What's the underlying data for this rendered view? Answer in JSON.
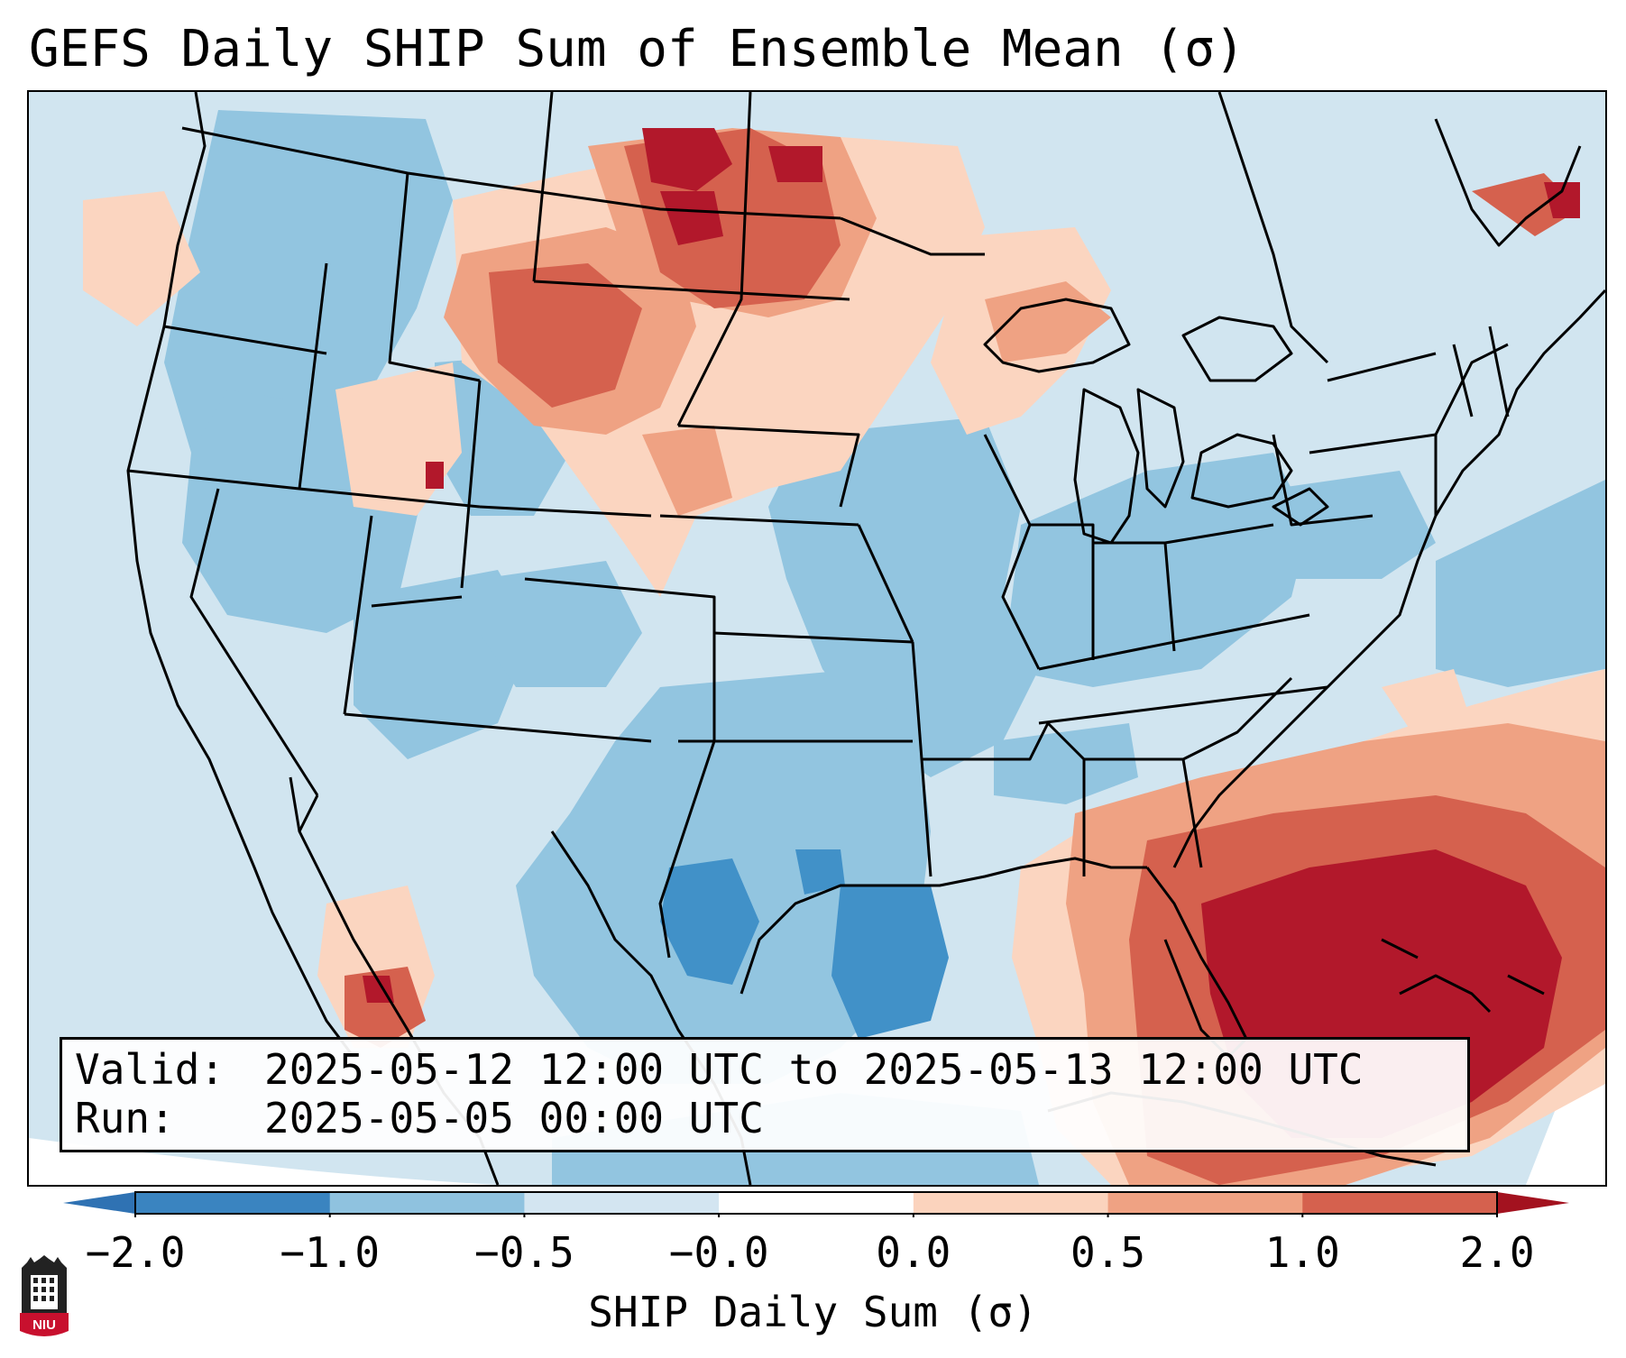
{
  "title": "GEFS Daily SHIP Sum of Ensemble Mean (σ)",
  "info": {
    "valid_key": "Valid:",
    "valid_value": "2025-05-12 12:00 UTC to 2025-05-13 12:00 UTC",
    "run_key": "Run:",
    "run_value": "2025-05-05 00:00 UTC"
  },
  "colorbar": {
    "label": "SHIP Daily Sum (σ)",
    "ticks": [
      "−2.0",
      "−1.0",
      "−0.5",
      "−0.0",
      "0.0",
      "0.5",
      "1.0",
      "2.0"
    ],
    "colors": [
      "#3a84c0",
      "#8fc2df",
      "#d3e5f1",
      "#ffffff",
      "#fbd3bd",
      "#efa283",
      "#d5614e",
      "#b01a2a"
    ],
    "extend_low_color": "#2f72b3",
    "extend_high_color": "#a3121f"
  },
  "map": {
    "field_colors": {
      "neg_strong": "#4191c8",
      "neg_mid": "#92c5e0",
      "neg_weak": "#d1e5f0",
      "pos_weak": "#fbd5c0",
      "pos_mid": "#efa283",
      "pos_strong": "#d5614e",
      "pos_extreme": "#b2182b"
    },
    "boundary_color": "#000000"
  },
  "logo": {
    "text": "NIU",
    "icon": "niu-logo-icon",
    "color": "#c8102e"
  }
}
